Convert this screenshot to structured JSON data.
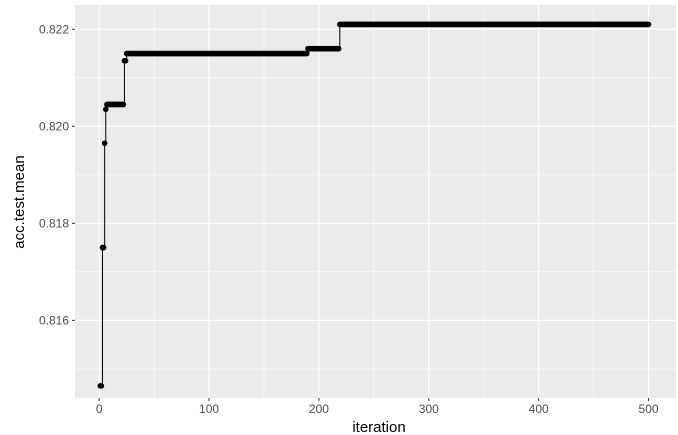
{
  "chart_data": {
    "type": "line",
    "title": "",
    "xlabel": "iteration",
    "ylabel": "acc.test.mean",
    "xlim": [
      -22,
      525
    ],
    "ylim": [
      0.8144,
      0.8225
    ],
    "x_major_ticks": [
      0,
      100,
      200,
      300,
      400,
      500
    ],
    "y_major_ticks": [
      0.816,
      0.818,
      0.82,
      0.822
    ],
    "x_minor_ticks": [
      50,
      150,
      250,
      350,
      450
    ],
    "y_minor_ticks": [
      0.815,
      0.817,
      0.819,
      0.821
    ],
    "x_tick_labels": [
      "0",
      "100",
      "200",
      "300",
      "400",
      "500"
    ],
    "y_tick_labels": [
      "0.816",
      "0.818",
      "0.820",
      "0.822"
    ],
    "grid": true,
    "legend": "none",
    "colors": {
      "panel": "#ebebeb",
      "grid": "#ffffff",
      "line": "#000000",
      "point": "#000000"
    },
    "series": [
      {
        "style": "step line with points at every iteration",
        "x": [
          1,
          3,
          5,
          6,
          7,
          23,
          25,
          190,
          219,
          500
        ],
        "y": [
          0.81465,
          0.8175,
          0.81965,
          0.82035,
          0.82045,
          0.82135,
          0.8215,
          0.8216,
          0.8221,
          0.8221
        ]
      }
    ]
  }
}
